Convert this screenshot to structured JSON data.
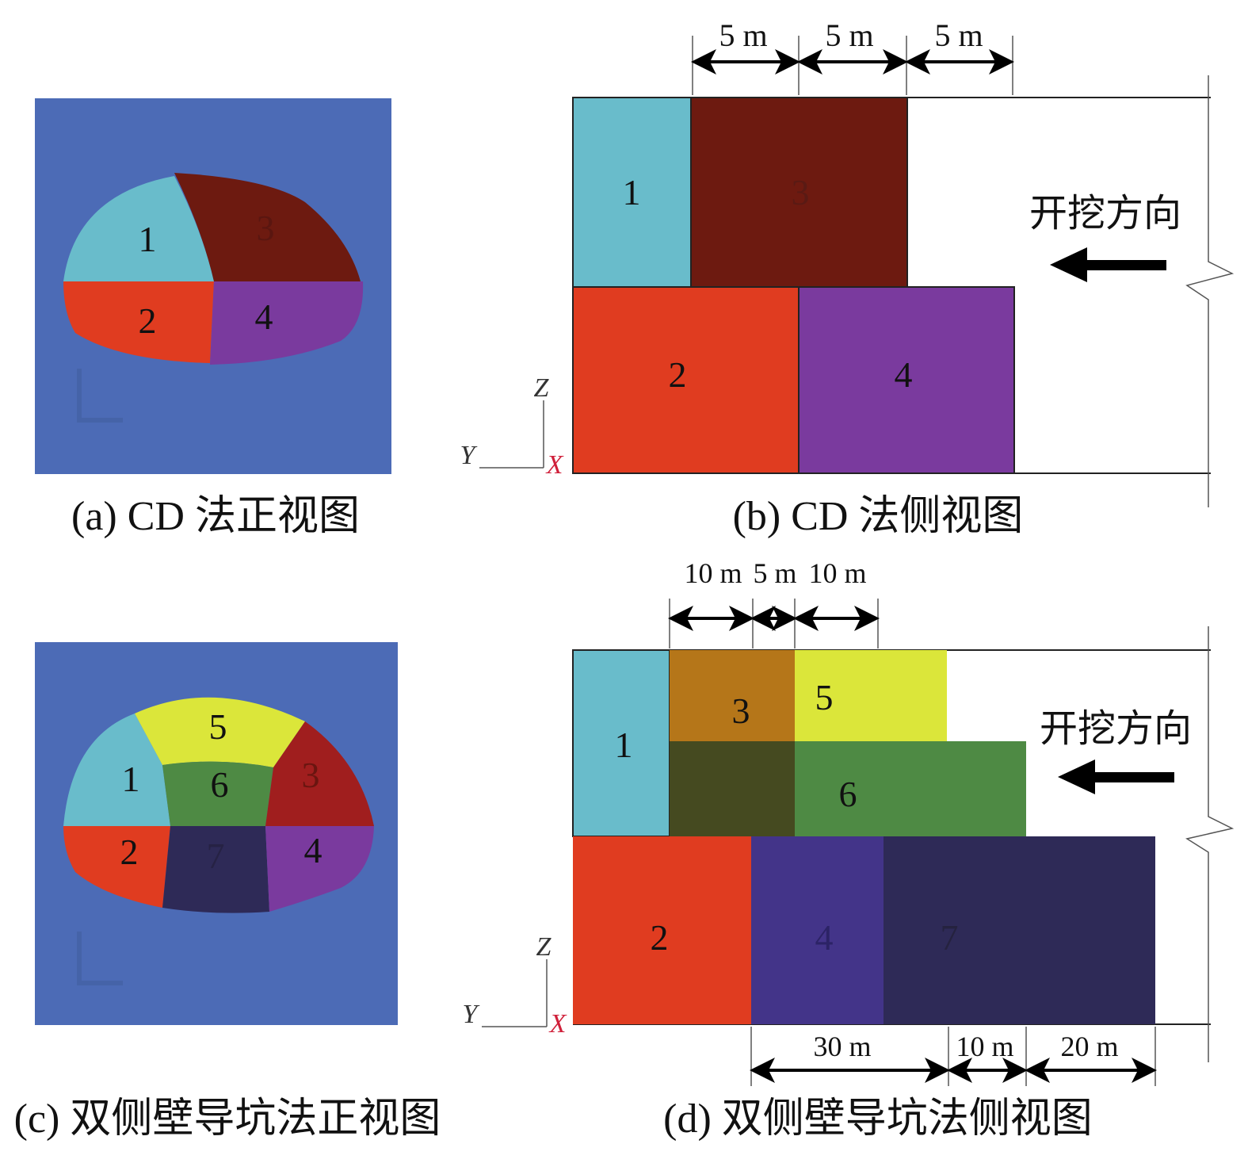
{
  "colors": {
    "background_blue": "#4c6bb6",
    "cyan": "#69bccb",
    "dark_red": "#6d1a10",
    "red": "#e03c20",
    "purple": "#7a3a9e",
    "yellow": "#dbe63a",
    "green": "#4e8a44",
    "dark_olive": "#454a20",
    "ochre": "#b57619",
    "indigo": "#433489",
    "navy": "#2e2a57",
    "crimson": "#a01e1e"
  },
  "panel_a": {
    "caption": "(a) CD 法正视图",
    "sections": [
      "1",
      "2",
      "3",
      "4"
    ]
  },
  "panel_b": {
    "caption": "(b) CD 法侧视图",
    "sections": [
      "1",
      "2",
      "3",
      "4"
    ],
    "top_dimensions": [
      "5 m",
      "5 m",
      "5 m"
    ],
    "direction_label": "开挖方向",
    "axes": {
      "z": "Z",
      "y": "Y",
      "x": "X"
    }
  },
  "panel_c": {
    "caption": "(c) 双侧壁导坑法正视图",
    "sections": [
      "1",
      "2",
      "3",
      "4",
      "5",
      "6",
      "7"
    ]
  },
  "panel_d": {
    "caption": "(d) 双侧壁导坑法侧视图",
    "sections": [
      "1",
      "2",
      "3",
      "4",
      "5",
      "6",
      "7"
    ],
    "top_dimensions": [
      "10 m",
      "5 m",
      "10 m"
    ],
    "bottom_dimensions": [
      "30 m",
      "10 m",
      "20 m"
    ],
    "direction_label": "开挖方向",
    "axes": {
      "z": "Z",
      "y": "Y",
      "x": "X"
    }
  }
}
